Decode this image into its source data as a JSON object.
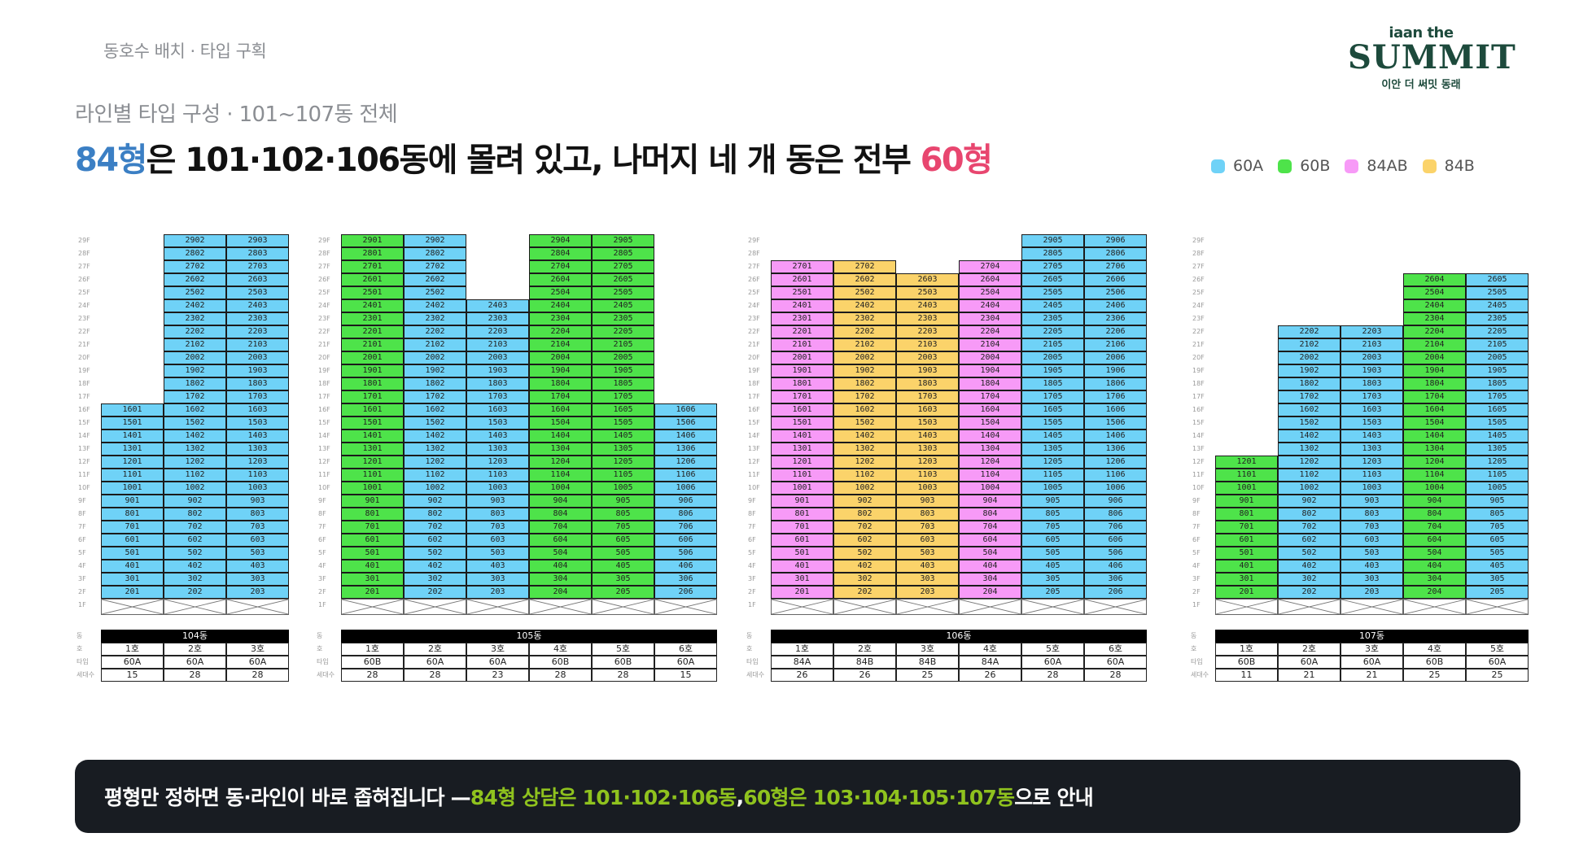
{
  "header": {
    "section_label": "동호수 배치 · 타입 구획",
    "logo": {
      "top": "iaan the",
      "main": "SUMMIT",
      "sub": "이안 더 써밋 동래"
    },
    "subtitle": "라인별 타입 구성 · 101~107동 전체",
    "headline": {
      "a": "84형",
      "b": "은 101·102·106동에 몰려 있고, 나머지 네 개 동은 전부 ",
      "c": "60형"
    }
  },
  "legend": [
    {
      "label": "60A",
      "color": "#6fd2f7"
    },
    {
      "label": "60B",
      "color": "#4ee34a"
    },
    {
      "label": "84AB",
      "color": "#f79af7"
    },
    {
      "label": "84B",
      "color": "#fbd36a"
    }
  ],
  "summary_row_labels": {
    "building": "동",
    "unit": "호",
    "type": "타입",
    "households": "세대수"
  },
  "buildings": [
    {
      "name": "104동",
      "lines": [
        {
          "unit": "1호",
          "type": "60A",
          "households": "15",
          "max_floor": 16,
          "start": 2,
          "floor_types": {}
        },
        {
          "unit": "2호",
          "type": "60A",
          "households": "28",
          "max_floor": 29,
          "start": 2,
          "floor_types": {}
        },
        {
          "unit": "3호",
          "type": "60A",
          "households": "28",
          "max_floor": 29,
          "start": 2,
          "floor_types": {}
        }
      ]
    },
    {
      "name": "105동",
      "lines": [
        {
          "unit": "1호",
          "type": "60B",
          "households": "28",
          "max_floor": 29,
          "start": 2,
          "floor_types": {}
        },
        {
          "unit": "2호",
          "type": "60A",
          "households": "28",
          "max_floor": 29,
          "start": 2,
          "floor_types": {}
        },
        {
          "unit": "3호",
          "type": "60A",
          "households": "23",
          "max_floor": 24,
          "start": 2,
          "floor_types": {}
        },
        {
          "unit": "4호",
          "type": "60B",
          "households": "28",
          "max_floor": 29,
          "start": 2,
          "floor_types": {}
        },
        {
          "unit": "5호",
          "type": "60B",
          "households": "28",
          "max_floor": 29,
          "start": 2,
          "floor_types": {}
        },
        {
          "unit": "6호",
          "type": "60A",
          "households": "15",
          "max_floor": 16,
          "start": 2,
          "floor_types": {}
        }
      ]
    },
    {
      "name": "106동",
      "lines": [
        {
          "unit": "1호",
          "type": "84A",
          "households": "26",
          "max_floor": 27,
          "start": 2,
          "floor_types": {}
        },
        {
          "unit": "2호",
          "type": "84B",
          "households": "26",
          "max_floor": 27,
          "start": 2,
          "floor_types": {}
        },
        {
          "unit": "3호",
          "type": "84B",
          "households": "25",
          "max_floor": 26,
          "start": 2,
          "floor_types": {}
        },
        {
          "unit": "4호",
          "type": "84A",
          "households": "26",
          "max_floor": 27,
          "start": 2,
          "floor_types": {}
        },
        {
          "unit": "5호",
          "type": "60A",
          "households": "28",
          "max_floor": 29,
          "start": 2,
          "floor_types": {}
        },
        {
          "unit": "6호",
          "type": "60A",
          "households": "28",
          "max_floor": 29,
          "start": 2,
          "floor_types": {}
        }
      ]
    },
    {
      "name": "107동",
      "lines": [
        {
          "unit": "1호",
          "type": "60B",
          "households": "11",
          "max_floor": 12,
          "start": 2,
          "floor_types": {}
        },
        {
          "unit": "2호",
          "type": "60A",
          "households": "21",
          "max_floor": 22,
          "start": 2,
          "floor_types": {}
        },
        {
          "unit": "3호",
          "type": "60A",
          "households": "21",
          "max_floor": 22,
          "start": 2,
          "floor_types": {}
        },
        {
          "unit": "4호",
          "type": "60B",
          "households": "25",
          "max_floor": 26,
          "start": 2,
          "floor_types": {}
        },
        {
          "unit": "5호",
          "type": "60A",
          "households": "25",
          "max_floor": 26,
          "start": 2,
          "floor_types": {}
        }
      ]
    }
  ],
  "banner": {
    "a": "평형만 정하면 동·라인이 바로 좁혀집니다 — ",
    "b": "84형 상담은 101·102·106동",
    "c": ", ",
    "d": "60형은 103·104·105·107동",
    "e": "으로 안내"
  }
}
